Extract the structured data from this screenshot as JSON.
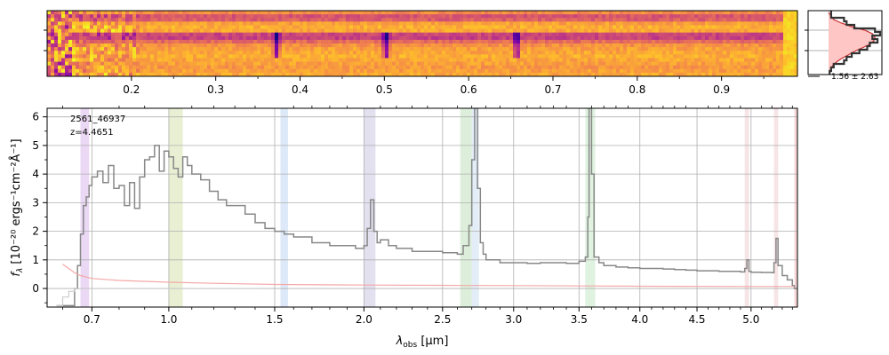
{
  "chart_data": [
    {
      "type": "heatmap",
      "role": "2d-spectrum",
      "colormap": "plasma",
      "secondary_axis_ticks": [
        0.2,
        0.3,
        0.4,
        0.5,
        0.6,
        0.7,
        0.8,
        0.9
      ],
      "secondary_axis_tick_labels": [
        "0.2",
        "0.3",
        "0.4",
        "0.5",
        "0.6",
        "0.7",
        "0.8",
        "0.9"
      ],
      "bright_lines_um": [
        2.05,
        2.72,
        3.58
      ],
      "dark_lines_secondary": [
        0.37,
        0.5,
        0.655
      ]
    },
    {
      "type": "line",
      "role": "spatial-profile",
      "annotation": "1.56 ± 2.63"
    },
    {
      "type": "line",
      "title": "",
      "xlabel": "λobs [μm]",
      "xlabel_main": "λ",
      "xlabel_sub": "obs",
      "xlabel_unit": " [μm]",
      "ylabel": "fλ [10⁻²⁰ ergs⁻¹cm⁻²Å⁻¹]",
      "ylabel_f": "f",
      "ylabel_sub": "λ",
      "ylabel_unit": " [10⁻²⁰ ergs⁻¹cm⁻²Å⁻¹]",
      "xlim": [
        0.55,
        5.45
      ],
      "ylim": [
        -0.65,
        6.3
      ],
      "x_scale": "sqrt",
      "grid": true,
      "x_ticks": [
        0.7,
        1.0,
        1.5,
        2.0,
        2.5,
        3.0,
        3.5,
        4.0,
        4.5,
        5.0
      ],
      "x_tick_labels": [
        "0.7",
        "1.0",
        "1.5",
        "2.0",
        "2.5",
        "3.0",
        "3.5",
        "4.0",
        "4.5",
        "5.0"
      ],
      "y_ticks": [
        0,
        1,
        2,
        3,
        4,
        5,
        6
      ],
      "y_tick_labels": [
        "0",
        "1",
        "2",
        "3",
        "4",
        "5",
        "6"
      ],
      "annotations": [
        "2561_46937",
        "z=4.4651"
      ],
      "shaded_bands": [
        {
          "x0": 0.66,
          "x1": 0.69,
          "color": "#e3c8f0"
        },
        {
          "x0": 1.0,
          "x1": 1.06,
          "color": "#e0e8c0"
        },
        {
          "x0": 1.53,
          "x1": 1.57,
          "color": "#cfe0f5"
        },
        {
          "x0": 2.0,
          "x1": 2.07,
          "color": "#d7d3e8"
        },
        {
          "x0": 2.62,
          "x1": 2.7,
          "color": "#cfe8cc"
        },
        {
          "x0": 2.7,
          "x1": 2.75,
          "color": "#d7e6f5"
        },
        {
          "x0": 3.55,
          "x1": 3.63,
          "color": "#d3ecd3"
        },
        {
          "x0": 4.94,
          "x1": 4.98,
          "color": "#f2d9dc"
        },
        {
          "x0": 5.22,
          "x1": 5.26,
          "color": "#f2d9dc"
        },
        {
          "x0": 5.42,
          "x1": 5.45,
          "color": "#f5c4c8"
        }
      ],
      "series": [
        {
          "color": "#888888",
          "step": true,
          "x": [
            0.58,
            0.6,
            0.62,
            0.63,
            0.64,
            0.65,
            0.66,
            0.67,
            0.68,
            0.69,
            0.7,
            0.72,
            0.74,
            0.76,
            0.78,
            0.8,
            0.82,
            0.84,
            0.86,
            0.88,
            0.9,
            0.92,
            0.94,
            0.96,
            0.98,
            1.0,
            1.02,
            1.04,
            1.06,
            1.08,
            1.1,
            1.14,
            1.18,
            1.22,
            1.26,
            1.3,
            1.35,
            1.4,
            1.45,
            1.5,
            1.55,
            1.6,
            1.7,
            1.8,
            1.9,
            1.95,
            2.0,
            2.02,
            2.04,
            2.06,
            2.08,
            2.1,
            2.15,
            2.2,
            2.3,
            2.4,
            2.5,
            2.6,
            2.64,
            2.68,
            2.7,
            2.72,
            2.74,
            2.76,
            2.78,
            2.8,
            2.9,
            3.0,
            3.1,
            3.2,
            3.3,
            3.4,
            3.5,
            3.55,
            3.57,
            3.58,
            3.6,
            3.62,
            3.66,
            3.7,
            3.8,
            3.9,
            4.0,
            4.1,
            4.2,
            4.3,
            4.4,
            4.5,
            4.6,
            4.7,
            4.8,
            4.9,
            4.94,
            4.96,
            4.98,
            5.0,
            5.1,
            5.2,
            5.22,
            5.24,
            5.26,
            5.3,
            5.35,
            5.4,
            5.42
          ],
          "values": [
            -0.6,
            -0.6,
            -0.6,
            -0.6,
            0.0,
            0.8,
            1.9,
            2.9,
            3.2,
            3.6,
            3.9,
            4.1,
            3.7,
            4.3,
            3.5,
            3.6,
            2.9,
            3.7,
            2.8,
            3.9,
            4.5,
            4.6,
            5.0,
            4.1,
            4.8,
            4.6,
            4.2,
            3.9,
            4.6,
            4.3,
            4.0,
            3.8,
            3.4,
            3.1,
            2.9,
            2.9,
            2.6,
            2.3,
            2.1,
            2.0,
            1.9,
            1.8,
            1.6,
            1.5,
            1.5,
            1.4,
            1.5,
            2.1,
            3.1,
            2.0,
            1.6,
            1.7,
            1.5,
            1.4,
            1.3,
            1.3,
            1.25,
            1.2,
            1.5,
            2.2,
            4.5,
            6.3,
            3.5,
            1.6,
            1.2,
            1.0,
            0.9,
            0.9,
            0.88,
            0.9,
            0.9,
            0.88,
            0.95,
            1.1,
            2.5,
            6.3,
            4.0,
            1.1,
            0.9,
            0.8,
            0.75,
            0.72,
            0.7,
            0.7,
            0.68,
            0.66,
            0.64,
            0.62,
            0.62,
            0.6,
            0.6,
            0.58,
            0.7,
            1.0,
            0.6,
            0.57,
            0.56,
            0.55,
            0.9,
            1.75,
            0.8,
            0.45,
            0.3,
            0.1,
            0.0
          ]
        },
        {
          "color": "#f4a8a8",
          "step": false,
          "x": [
            0.6,
            0.62,
            0.64,
            0.66,
            0.7,
            0.8,
            1.0,
            1.2,
            1.5,
            2.0,
            2.5,
            3.0,
            4.0,
            5.0,
            5.42
          ],
          "values": [
            0.85,
            0.7,
            0.55,
            0.45,
            0.35,
            0.28,
            0.22,
            0.18,
            0.14,
            0.12,
            0.11,
            0.1,
            0.08,
            0.07,
            0.07
          ]
        },
        {
          "color": "#cccccc",
          "step": true,
          "x": [
            0.58,
            0.6,
            0.62,
            0.64,
            0.66,
            0.7,
            0.8,
            1.0,
            1.2,
            1.4
          ],
          "values": [
            -0.6,
            -0.3,
            -0.1,
            0.0,
            0.0,
            0.0,
            0.0,
            0.0,
            0.0,
            0.0
          ]
        }
      ]
    }
  ]
}
